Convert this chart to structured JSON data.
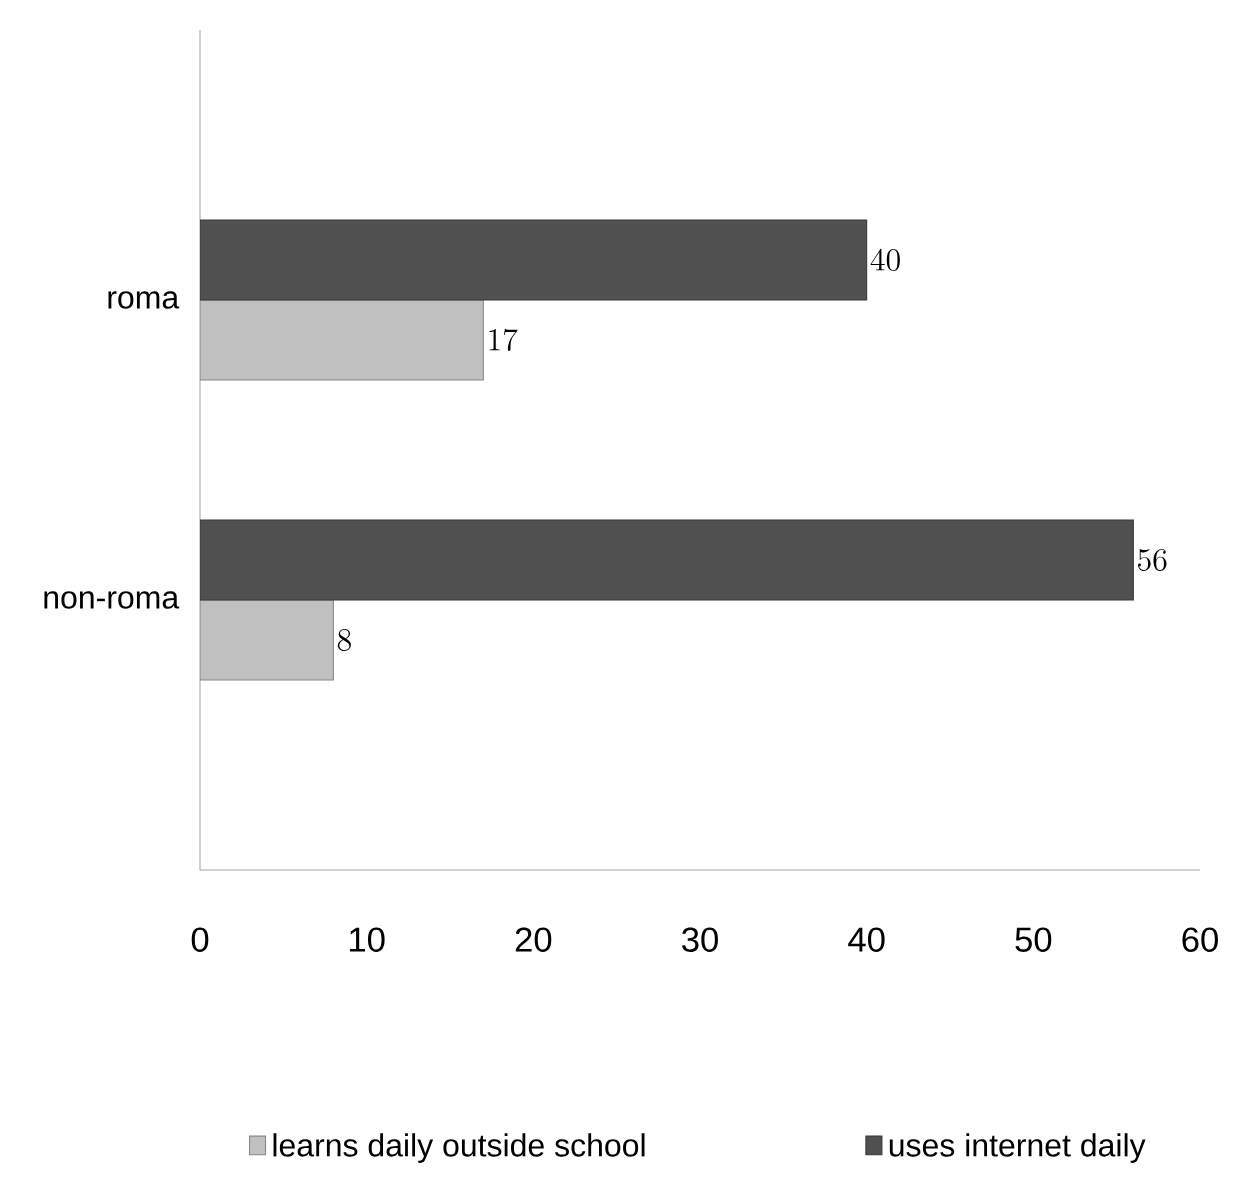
{
  "chart_data": {
    "type": "bar",
    "orientation": "horizontal",
    "categories": [
      "roma",
      "non-roma"
    ],
    "series": [
      {
        "name": "learns daily outside school",
        "color": "#c0c0c0",
        "values": [
          17,
          8
        ]
      },
      {
        "name": "uses internet daily",
        "color": "#505050",
        "values": [
          40,
          56
        ]
      }
    ],
    "xlim": [
      0,
      60
    ],
    "xticks": [
      0,
      10,
      20,
      30,
      40,
      50,
      60
    ],
    "data_labels": true,
    "legend": "bottom",
    "grid": false
  }
}
